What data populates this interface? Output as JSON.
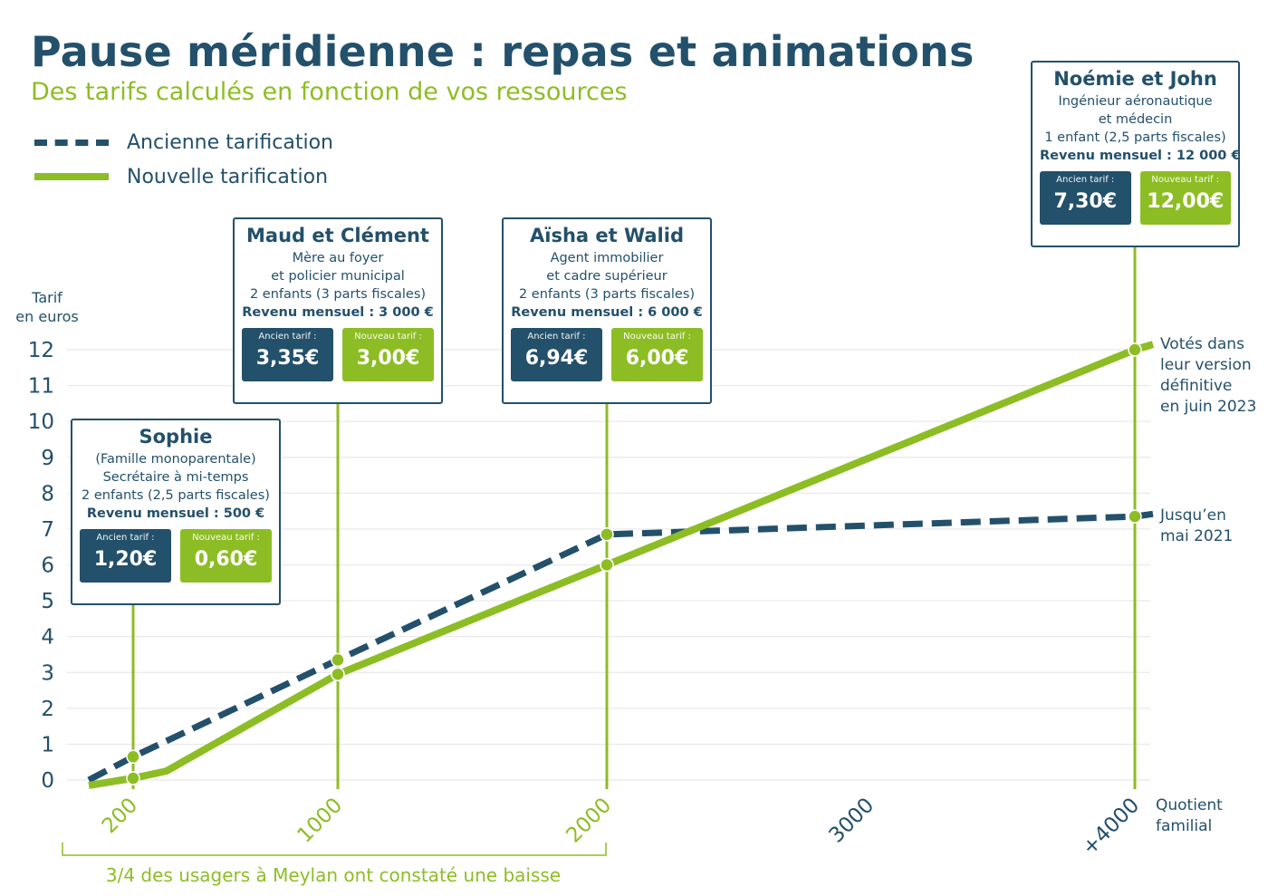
{
  "header": {
    "title": "Pause méridienne : repas et animations",
    "subtitle": "Des tarifs calculés en fonction de vos ressources"
  },
  "legend": {
    "old": "Ancienne tarification",
    "new": "Nouvelle tarification"
  },
  "axis": {
    "y_label_line1": "Tarif",
    "y_label_line2": "en euros",
    "x_label_line1": "Quotient",
    "x_label_line2": "familial"
  },
  "notes": {
    "new_line1": "Votés dans",
    "new_line2": "leur version",
    "new_line3": "définitive",
    "new_line4": "en juin 2023",
    "old_line1": "Jusqu’en",
    "old_line2": "mai 2021"
  },
  "footer": "3/4 des usagers à Meylan ont constaté une baisse",
  "cards": [
    {
      "name": "Sophie",
      "lines": [
        "(Famille monoparentale)",
        "Secrétaire à mi-temps",
        "2 enfants (2,5 parts fiscales)"
      ],
      "income": "Revenu mensuel : 500 €",
      "old_label": "Ancien tarif :",
      "old_value": "1,20€",
      "new_label": "Nouveau tarif :",
      "new_value": "0,60€"
    },
    {
      "name": "Maud et Clément",
      "lines": [
        "Mère au foyer",
        "et policier municipal",
        "2 enfants (3 parts fiscales)"
      ],
      "income": "Revenu mensuel : 3 000 €",
      "old_label": "Ancien tarif :",
      "old_value": "3,35€",
      "new_label": "Nouveau tarif :",
      "new_value": "3,00€"
    },
    {
      "name": "Aïsha et Walid",
      "lines": [
        "Agent immobilier",
        "et cadre supérieur",
        "2 enfants (3 parts fiscales)"
      ],
      "income": "Revenu mensuel : 6 000 €",
      "old_label": "Ancien tarif :",
      "old_value": "6,94€",
      "new_label": "Nouveau tarif :",
      "new_value": "6,00€"
    },
    {
      "name": "Noémie et John",
      "lines": [
        "Ingénieur aéronautique",
        "et médecin",
        "1 enfant (2,5 parts fiscales)"
      ],
      "income": "Revenu mensuel : 12 000 €",
      "old_label": "Ancien tarif :",
      "old_value": "7,30€",
      "new_label": "Nouveau tarif :",
      "new_value": "12,00€"
    }
  ],
  "colors": {
    "old": "#23506b",
    "new": "#8dbd24",
    "grid": "#e8e8e8"
  },
  "chart_data": {
    "type": "line",
    "title": "Pause méridienne : repas et animations",
    "subtitle": "Des tarifs calculés en fonction de vos ressources",
    "xlabel": "Quotient familial",
    "ylabel": "Tarif en euros",
    "ylim": [
      0,
      12
    ],
    "yticks": [
      "0",
      "1",
      "2",
      "3",
      "4",
      "5",
      "6",
      "7",
      "8",
      "9",
      "10",
      "11",
      "12"
    ],
    "xticks": [
      {
        "value": 200,
        "label": "200",
        "highlight": true
      },
      {
        "value": 1000,
        "label": "1000",
        "highlight": true
      },
      {
        "value": 2000,
        "label": "2000",
        "highlight": true
      },
      {
        "value": 3000,
        "label": "3000",
        "highlight": false
      },
      {
        "value": 4000,
        "label": "+4000",
        "highlight": false
      }
    ],
    "grid": true,
    "legend": "top-left",
    "series": [
      {
        "name": "Ancienne tarification",
        "style": "dashed",
        "points": [
          [
            0,
            0
          ],
          [
            200,
            0.65
          ],
          [
            1000,
            3.35
          ],
          [
            2000,
            6.85
          ],
          [
            4000,
            7.35
          ],
          [
            4070,
            7.42
          ]
        ],
        "markers": [
          [
            200,
            0.65
          ],
          [
            1000,
            3.35
          ],
          [
            2000,
            6.85
          ],
          [
            4000,
            7.35
          ]
        ]
      },
      {
        "name": "Nouvelle tarification",
        "style": "solid",
        "points": [
          [
            0,
            -0.15
          ],
          [
            200,
            0.05
          ],
          [
            330,
            0.25
          ],
          [
            1000,
            2.95
          ],
          [
            2000,
            6.0
          ],
          [
            4000,
            12.0
          ],
          [
            4070,
            12.15
          ]
        ],
        "markers": [
          [
            200,
            0.05
          ],
          [
            1000,
            2.95
          ],
          [
            2000,
            6.0
          ],
          [
            4000,
            12.0
          ]
        ]
      }
    ]
  }
}
